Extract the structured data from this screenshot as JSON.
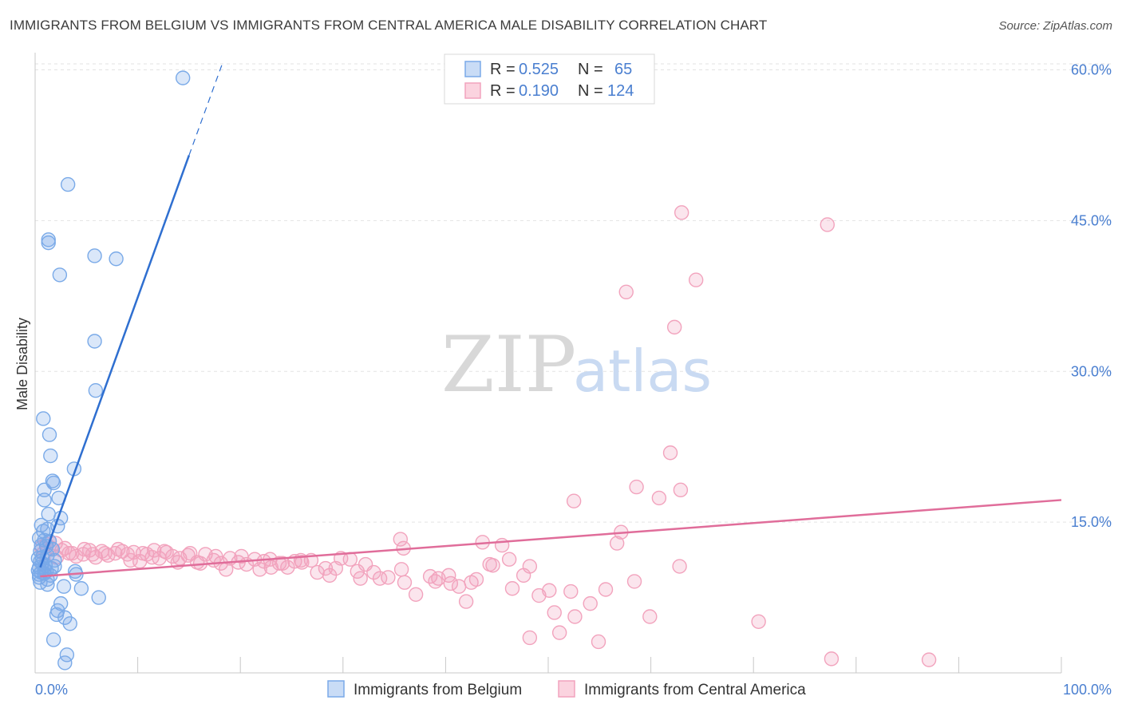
{
  "title": "IMMIGRANTS FROM BELGIUM VS IMMIGRANTS FROM CENTRAL AMERICA MALE DISABILITY CORRELATION CHART",
  "source": "Source: ZipAtlas.com",
  "watermark": {
    "zip": "ZIP",
    "atlas": "atlas"
  },
  "legend_top": {
    "rows": [
      {
        "r_label": "R =",
        "r_value": "0.525",
        "n_label": "N =",
        "n_value": "65",
        "color": "#7aaae8"
      },
      {
        "r_label": "R =",
        "r_value": "0.190",
        "n_label": "N =",
        "n_value": "124",
        "color": "#f2a3bd"
      }
    ]
  },
  "chart_data": {
    "type": "scatter",
    "title": "IMMIGRANTS FROM BELGIUM VS IMMIGRANTS FROM CENTRAL AMERICA MALE DISABILITY CORRELATION CHART",
    "xlabel": "",
    "ylabel": "Male Disability",
    "xlim": [
      0,
      100
    ],
    "ylim": [
      0,
      60
    ],
    "x_ticks": [
      "0.0%",
      "100.0%"
    ],
    "y_ticks": [
      {
        "value": 15,
        "label": "15.0%"
      },
      {
        "value": 30,
        "label": "30.0%"
      },
      {
        "value": 45,
        "label": "45.0%"
      },
      {
        "value": 60,
        "label": "60.0%"
      }
    ],
    "grid": true,
    "legend_position": "bottom",
    "series": [
      {
        "name": "Immigrants from Belgium",
        "color": "#7aaae8",
        "line_color": "#2f6fd0",
        "trend": {
          "x0": 0.5,
          "y0": 10.5,
          "x1": 15.0,
          "y1": 51.5,
          "dash_x1": 18.2,
          "dash_y1": 60.5
        },
        "points": [
          [
            14.4,
            59.2
          ],
          [
            3.2,
            48.6
          ],
          [
            1.3,
            43.1
          ],
          [
            1.3,
            42.8
          ],
          [
            5.8,
            41.5
          ],
          [
            7.9,
            41.2
          ],
          [
            2.4,
            39.6
          ],
          [
            5.8,
            33.0
          ],
          [
            5.9,
            28.1
          ],
          [
            0.8,
            25.3
          ],
          [
            1.4,
            23.7
          ],
          [
            1.5,
            21.6
          ],
          [
            3.8,
            20.3
          ],
          [
            1.7,
            19.1
          ],
          [
            1.8,
            18.9
          ],
          [
            0.9,
            18.2
          ],
          [
            0.9,
            17.2
          ],
          [
            2.3,
            17.4
          ],
          [
            1.3,
            15.8
          ],
          [
            2.5,
            15.4
          ],
          [
            2.2,
            14.6
          ],
          [
            0.6,
            14.7
          ],
          [
            0.8,
            14.1
          ],
          [
            1.2,
            14.3
          ],
          [
            0.4,
            13.4
          ],
          [
            0.9,
            13.2
          ],
          [
            1.4,
            13.1
          ],
          [
            0.6,
            12.7
          ],
          [
            1.1,
            12.6
          ],
          [
            0.5,
            12.1
          ],
          [
            1.2,
            11.7
          ],
          [
            0.3,
            11.4
          ],
          [
            1.9,
            11.2
          ],
          [
            0.5,
            11.1
          ],
          [
            0.7,
            10.9
          ],
          [
            1.0,
            10.7
          ],
          [
            0.4,
            10.5
          ],
          [
            1.6,
            10.4
          ],
          [
            1.9,
            10.6
          ],
          [
            0.3,
            10.2
          ],
          [
            0.6,
            10.0
          ],
          [
            1.1,
            10.1
          ],
          [
            0.4,
            9.8
          ],
          [
            0.9,
            9.9
          ],
          [
            1.5,
            9.7
          ],
          [
            3.9,
            10.1
          ],
          [
            4.0,
            9.8
          ],
          [
            0.4,
            9.5
          ],
          [
            1.2,
            9.3
          ],
          [
            0.5,
            9.0
          ],
          [
            1.2,
            8.8
          ],
          [
            2.8,
            8.6
          ],
          [
            4.5,
            8.4
          ],
          [
            6.2,
            7.5
          ],
          [
            2.5,
            6.9
          ],
          [
            2.2,
            6.2
          ],
          [
            2.1,
            5.8
          ],
          [
            2.9,
            5.5
          ],
          [
            3.4,
            4.9
          ],
          [
            1.8,
            3.3
          ],
          [
            3.1,
            1.8
          ],
          [
            2.9,
            1.0
          ],
          [
            0.7,
            11.5
          ],
          [
            1.7,
            12.3
          ],
          [
            0.9,
            10.3
          ]
        ]
      },
      {
        "name": "Immigrants from Central America",
        "color": "#f2a3bd",
        "line_color": "#e06d9a",
        "trend": {
          "x0": 0.5,
          "y0": 9.6,
          "x1": 100,
          "y1": 17.2
        },
        "points": [
          [
            63.0,
            45.8
          ],
          [
            77.2,
            44.6
          ],
          [
            64.4,
            39.1
          ],
          [
            57.6,
            37.9
          ],
          [
            62.3,
            34.4
          ],
          [
            61.9,
            21.9
          ],
          [
            58.6,
            18.5
          ],
          [
            62.9,
            18.2
          ],
          [
            60.8,
            17.4
          ],
          [
            52.5,
            17.1
          ],
          [
            57.1,
            14.0
          ],
          [
            56.7,
            12.9
          ],
          [
            35.6,
            13.3
          ],
          [
            35.9,
            12.4
          ],
          [
            43.6,
            13.0
          ],
          [
            45.5,
            12.7
          ],
          [
            46.2,
            11.3
          ],
          [
            44.3,
            10.8
          ],
          [
            44.6,
            10.7
          ],
          [
            48.2,
            10.6
          ],
          [
            47.6,
            9.7
          ],
          [
            58.4,
            9.1
          ],
          [
            62.8,
            10.6
          ],
          [
            55.6,
            8.3
          ],
          [
            49.1,
            7.7
          ],
          [
            50.1,
            8.2
          ],
          [
            52.2,
            8.1
          ],
          [
            48.2,
            3.5
          ],
          [
            50.6,
            6.0
          ],
          [
            51.1,
            4.0
          ],
          [
            52.6,
            5.6
          ],
          [
            54.1,
            6.9
          ],
          [
            54.9,
            3.1
          ],
          [
            59.9,
            5.6
          ],
          [
            70.5,
            5.1
          ],
          [
            77.6,
            1.4
          ],
          [
            87.1,
            1.3
          ],
          [
            37.1,
            7.8
          ],
          [
            42.0,
            7.1
          ],
          [
            46.5,
            8.4
          ],
          [
            40.5,
            8.9
          ],
          [
            41.3,
            8.6
          ],
          [
            39.3,
            9.4
          ],
          [
            38.5,
            9.6
          ],
          [
            39.0,
            9.1
          ],
          [
            42.5,
            9.0
          ],
          [
            43.0,
            9.3
          ],
          [
            40.3,
            9.7
          ],
          [
            36.0,
            9.0
          ],
          [
            35.7,
            10.3
          ],
          [
            34.4,
            9.5
          ],
          [
            33.6,
            9.4
          ],
          [
            33.0,
            10.0
          ],
          [
            32.2,
            10.8
          ],
          [
            31.4,
            10.1
          ],
          [
            31.7,
            9.4
          ],
          [
            30.7,
            11.3
          ],
          [
            29.8,
            11.4
          ],
          [
            29.3,
            10.4
          ],
          [
            28.7,
            9.7
          ],
          [
            28.3,
            10.4
          ],
          [
            27.5,
            10.0
          ],
          [
            26.9,
            11.2
          ],
          [
            26.0,
            11.0
          ],
          [
            25.3,
            11.1
          ],
          [
            24.6,
            10.5
          ],
          [
            23.8,
            10.9
          ],
          [
            23.0,
            10.5
          ],
          [
            22.3,
            11.1
          ],
          [
            21.4,
            11.3
          ],
          [
            20.6,
            10.8
          ],
          [
            19.8,
            11.0
          ],
          [
            19.0,
            11.4
          ],
          [
            18.1,
            10.9
          ],
          [
            17.4,
            11.2
          ],
          [
            16.6,
            11.8
          ],
          [
            15.8,
            11.0
          ],
          [
            14.9,
            11.7
          ],
          [
            14.1,
            11.4
          ],
          [
            13.4,
            11.6
          ],
          [
            12.8,
            12.0
          ],
          [
            12.1,
            11.4
          ],
          [
            11.6,
            12.2
          ],
          [
            10.9,
            11.8
          ],
          [
            10.2,
            11.1
          ],
          [
            9.6,
            12.0
          ],
          [
            9.0,
            11.8
          ],
          [
            8.5,
            12.1
          ],
          [
            7.8,
            11.9
          ],
          [
            7.1,
            11.7
          ],
          [
            6.5,
            12.1
          ],
          [
            5.9,
            11.5
          ],
          [
            5.3,
            12.2
          ],
          [
            4.7,
            11.8
          ],
          [
            4.0,
            11.6
          ],
          [
            3.3,
            11.9
          ],
          [
            2.6,
            12.2
          ],
          [
            2.1,
            11.5
          ],
          [
            1.6,
            12.4
          ],
          [
            1.1,
            12.8
          ],
          [
            0.8,
            11.9
          ],
          [
            0.6,
            12.5
          ],
          [
            1.4,
            13.1
          ],
          [
            2.0,
            12.9
          ],
          [
            2.9,
            12.4
          ],
          [
            3.6,
            11.9
          ],
          [
            4.8,
            12.3
          ],
          [
            5.6,
            11.8
          ],
          [
            6.8,
            11.9
          ],
          [
            8.1,
            12.3
          ],
          [
            9.3,
            11.2
          ],
          [
            10.5,
            11.9
          ],
          [
            11.4,
            11.5
          ],
          [
            12.6,
            12.1
          ],
          [
            13.9,
            11.0
          ],
          [
            15.1,
            11.9
          ],
          [
            16.1,
            10.9
          ],
          [
            17.6,
            11.6
          ],
          [
            18.6,
            10.3
          ],
          [
            20.1,
            11.6
          ],
          [
            21.9,
            10.3
          ],
          [
            22.9,
            11.3
          ],
          [
            24.1,
            10.9
          ],
          [
            25.9,
            11.2
          ]
        ]
      }
    ]
  },
  "legend_bottom": [
    {
      "label": "Immigrants from Belgium",
      "color": "#7aaae8"
    },
    {
      "label": "Immigrants from Central America",
      "color": "#f2a3bd"
    }
  ]
}
